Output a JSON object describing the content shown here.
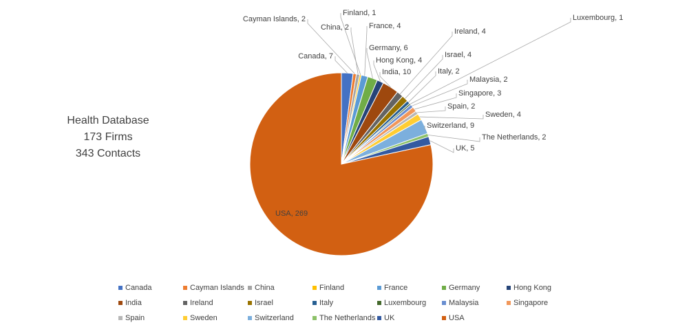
{
  "chart_data": {
    "type": "pie",
    "annotation": [
      "Health Database",
      "173 Firms",
      "343 Contacts"
    ],
    "categories": [
      "Canada",
      "Cayman Islands",
      "China",
      "Finland",
      "France",
      "Germany",
      "Hong Kong",
      "India",
      "Ireland",
      "Israel",
      "Italy",
      "Luxembourg",
      "Malaysia",
      "Singapore",
      "Spain",
      "Sweden",
      "Switzerland",
      "The Netherlands",
      "UK",
      "USA"
    ],
    "values": [
      7,
      2,
      2,
      1,
      4,
      6,
      4,
      10,
      4,
      4,
      2,
      1,
      2,
      3,
      2,
      4,
      9,
      2,
      5,
      269
    ],
    "value_labels": [
      "Canada, 7",
      "Cayman Islands, 2",
      "China, 2",
      "Finland, 1",
      "France, 4",
      "Germany, 6",
      "Hong Kong, 4",
      "India, 10",
      "Ireland, 4",
      "Israel, 4",
      "Italy, 2",
      "Luxembourg, 1",
      "Malaysia, 2",
      "Singapore, 3",
      "Spain, 2",
      "Sweden, 4",
      "Switzerland, 9",
      "The Netherlands, 2",
      "UK, 5",
      "USA, 269"
    ],
    "colors": [
      "#4472c4",
      "#ed7d31",
      "#a5a5a5",
      "#ffc000",
      "#5b9bd5",
      "#70ad47",
      "#264478",
      "#9e480e",
      "#636363",
      "#997300",
      "#255e91",
      "#43682b",
      "#698ed0",
      "#f1975a",
      "#b7b7b7",
      "#ffcd33",
      "#7cafdd",
      "#8cc168",
      "#335aa1",
      "#d26012"
    ],
    "legend": "bottom"
  }
}
